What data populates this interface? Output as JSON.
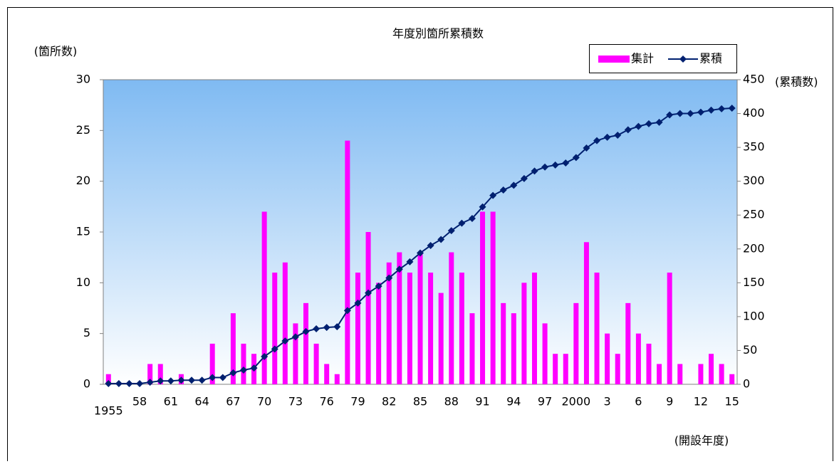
{
  "chart_data": {
    "type": "bar_line",
    "title": "年度別箇所累積数",
    "y_label": "(箇所数)",
    "y2_label": "(累積数)",
    "x_label": "(開設年度)",
    "categories": [
      "1955",
      null,
      null,
      "58",
      null,
      null,
      "61",
      null,
      null,
      "64",
      null,
      null,
      "67",
      null,
      null,
      "70",
      null,
      null,
      "73",
      null,
      null,
      "76",
      null,
      null,
      "79",
      null,
      null,
      "82",
      null,
      null,
      "85",
      null,
      null,
      "88",
      null,
      null,
      "91",
      null,
      null,
      "94",
      null,
      null,
      "97",
      null,
      null,
      "2000",
      null,
      null,
      "3",
      null,
      null,
      "6",
      null,
      null,
      "9",
      null,
      null,
      "12",
      null,
      null,
      "15"
    ],
    "series": [
      {
        "name": "集計",
        "color": "#ff00ff",
        "values": [
          1,
          0,
          0,
          0,
          2,
          2,
          0,
          1,
          0,
          0,
          4,
          0,
          7,
          4,
          3,
          17,
          11,
          12,
          6,
          8,
          4,
          2,
          1,
          24,
          11,
          15,
          10,
          12,
          13,
          11,
          13,
          11,
          9,
          13,
          11,
          7,
          17,
          17,
          8,
          7,
          10,
          11,
          6,
          3,
          3,
          8,
          14,
          11,
          5,
          3,
          8,
          5,
          4,
          2,
          11,
          2,
          0,
          2,
          3,
          2,
          1
        ]
      },
      {
        "name": "累積",
        "color": "#002070",
        "axis": "y2",
        "values": [
          1,
          1,
          1,
          1,
          3,
          5,
          5,
          6,
          6,
          6,
          10,
          10,
          17,
          21,
          24,
          41,
          52,
          64,
          70,
          78,
          82,
          84,
          85,
          109,
          120,
          135,
          145,
          157,
          170,
          181,
          194,
          205,
          214,
          227,
          238,
          245,
          262,
          279,
          287,
          294,
          304,
          315,
          321,
          324,
          327,
          335,
          349,
          360,
          365,
          368,
          376,
          381,
          385,
          387,
          398,
          400,
          400,
          402,
          405,
          407,
          408
        ]
      }
    ],
    "ylim": [
      0,
      30
    ],
    "yticks": [
      0,
      5,
      10,
      15,
      20,
      25,
      30
    ],
    "y2lim": [
      0,
      450
    ],
    "y2ticks": [
      0,
      50,
      100,
      150,
      200,
      250,
      300,
      350,
      400,
      450
    ]
  }
}
